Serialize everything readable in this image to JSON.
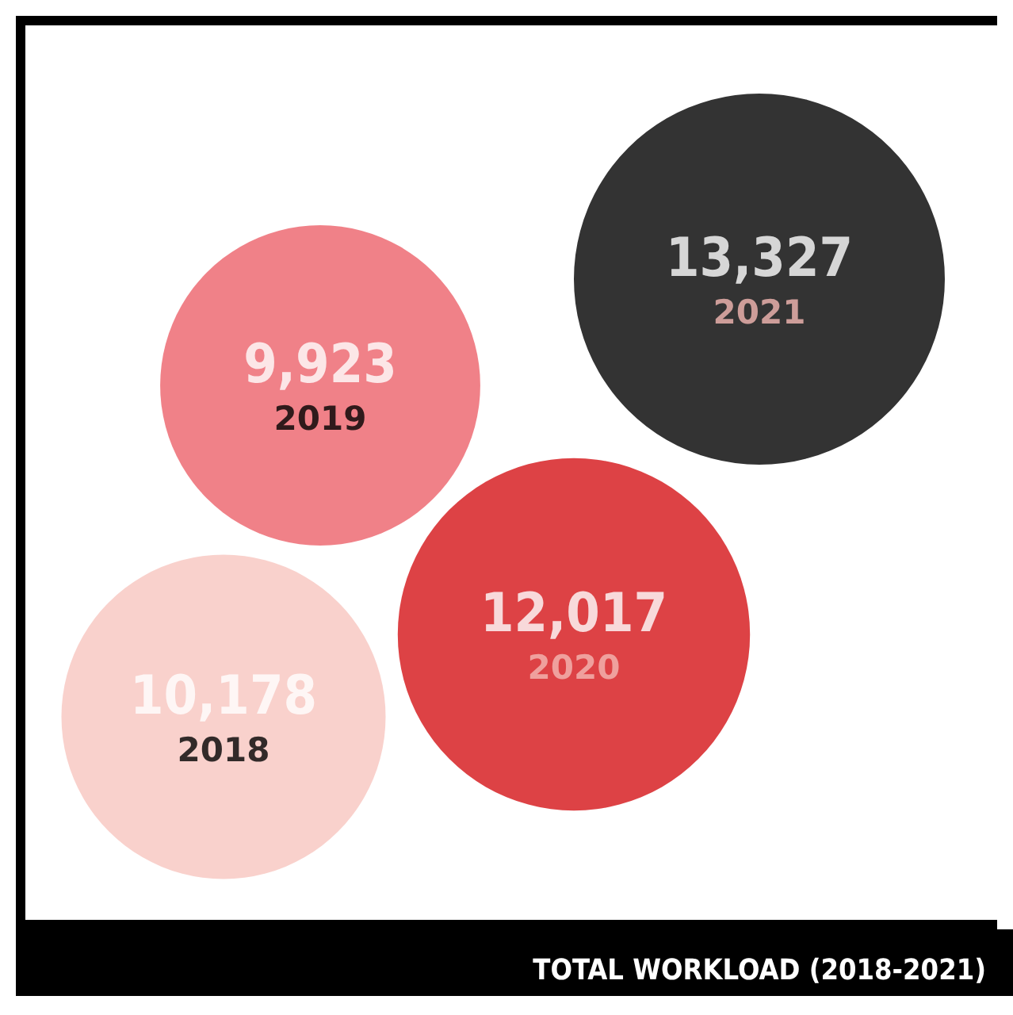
{
  "chart_data": {
    "type": "other",
    "title": "TOTAL WORKLOAD (2018-2021)",
    "categories": [
      "2018",
      "2019",
      "2020",
      "2021"
    ],
    "values": [
      10178,
      9923,
      12017,
      13327
    ],
    "value_labels": [
      "10,178",
      "9,923",
      "12,017",
      "13,327"
    ],
    "colors": [
      "#f7c6bf",
      "#ec626a",
      "#d41317",
      "#000000"
    ]
  }
}
